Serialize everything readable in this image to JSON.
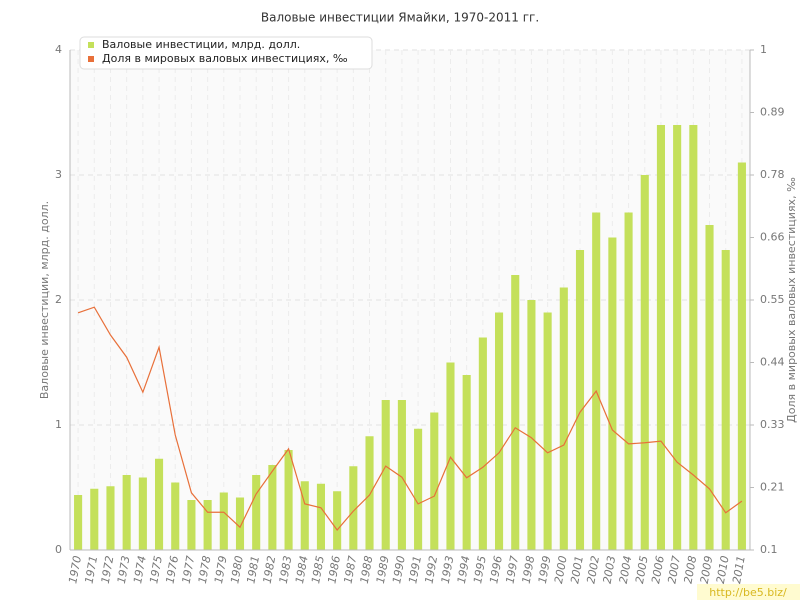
{
  "chart_data": {
    "type": "bar",
    "title": "Валовые инвестиции Ямайки, 1970-2011 гг.",
    "y_label": "Валовые инвестиции, млрд. долл.",
    "y2_label": "Доля в мировых валовых инвестициях, ‰",
    "watermark": "http://be5.biz/",
    "categories": [
      "1970",
      "1971",
      "1972",
      "1973",
      "1974",
      "1975",
      "1976",
      "1977",
      "1978",
      "1979",
      "1980",
      "1981",
      "1982",
      "1983",
      "1984",
      "1985",
      "1986",
      "1987",
      "1988",
      "1989",
      "1990",
      "1991",
      "1992",
      "1993",
      "1994",
      "1995",
      "1996",
      "1997",
      "1998",
      "1999",
      "2000",
      "2001",
      "2002",
      "2003",
      "2004",
      "2005",
      "2006",
      "2007",
      "2008",
      "2009",
      "2010",
      "2011"
    ],
    "series": [
      {
        "name": "Валовые инвестиции, млрд. долл.",
        "type": "bar",
        "color": "#c4e05a",
        "values": [
          0.44,
          0.49,
          0.51,
          0.6,
          0.58,
          0.73,
          0.54,
          0.4,
          0.4,
          0.46,
          0.42,
          0.6,
          0.68,
          0.8,
          0.55,
          0.53,
          0.47,
          0.67,
          0.91,
          1.2,
          1.2,
          0.97,
          1.1,
          1.5,
          1.4,
          1.7,
          1.9,
          2.2,
          2.0,
          1.9,
          2.1,
          2.4,
          2.7,
          2.5,
          2.7,
          3.0,
          3.4,
          3.4,
          3.4,
          2.6,
          2.4,
          3.1
        ]
      },
      {
        "name": "Доля в мировых валовых инвестициях, ‰",
        "type": "line",
        "axis": "y2",
        "color": "#e8703a",
        "values": [
          0.527,
          0.537,
          0.487,
          0.447,
          0.384,
          0.465,
          0.307,
          0.203,
          0.168,
          0.168,
          0.141,
          0.201,
          0.242,
          0.282,
          0.183,
          0.176,
          0.136,
          0.17,
          0.199,
          0.251,
          0.231,
          0.183,
          0.197,
          0.267,
          0.23,
          0.249,
          0.275,
          0.32,
          0.302,
          0.275,
          0.289,
          0.348,
          0.386,
          0.316,
          0.291,
          0.293,
          0.296,
          0.258,
          0.235,
          0.21,
          0.167,
          0.188
        ]
      }
    ],
    "ylim": [
      0,
      4
    ],
    "yticks": [
      0,
      1,
      2,
      3,
      4
    ],
    "y2lim": [
      0.1,
      1
    ],
    "y2ticks": [
      {
        "value": 0.1,
        "label": "0.1"
      },
      {
        "value": 0.2125,
        "label": "0.21"
      },
      {
        "value": 0.325,
        "label": "0.33"
      },
      {
        "value": 0.4375,
        "label": "0.44"
      },
      0.55,
      {
        "value": 0.6625,
        "label": "0.66"
      },
      {
        "value": 0.775,
        "label": "0.78"
      },
      {
        "value": 0.8875,
        "label": "0.89"
      },
      1
    ],
    "grid": true,
    "legend": "top-left"
  }
}
